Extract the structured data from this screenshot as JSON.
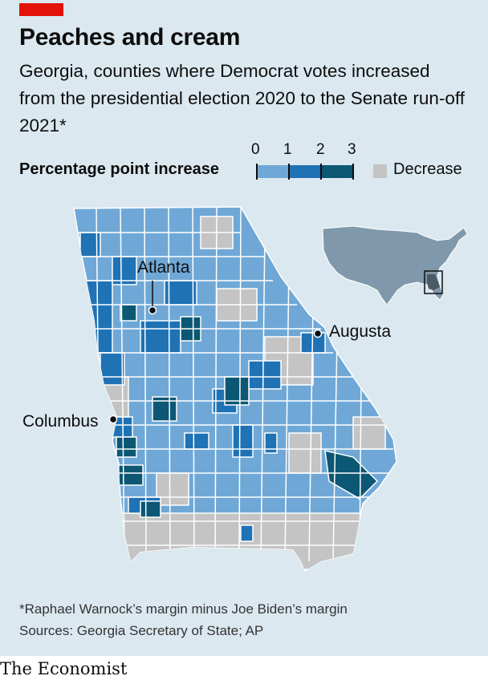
{
  "title": "Peaches and cream",
  "subtitle": "Georgia, counties where Democrat votes increased from the presidential election 2020 to the Senate run-off 2021*",
  "legend": {
    "title": "Percentage point increase",
    "ticks": [
      "0",
      "1",
      "2",
      "3"
    ],
    "bins": [
      {
        "range": "0-1",
        "color": "#6fa8d6"
      },
      {
        "range": "1-2",
        "color": "#1f72b4"
      },
      {
        "range": "2-3",
        "color": "#0b5774"
      }
    ],
    "decrease_label": "Decrease",
    "decrease_color": "#c4c4c4"
  },
  "map_labels": {
    "atlanta": "Atlanta",
    "augusta": "Augusta",
    "columbus": "Columbus"
  },
  "footnote": "*Raphael Warnock’s margin minus Joe Biden’s margin",
  "sources": "Sources: Georgia Secretary of State; AP",
  "brand": "The Economist",
  "colors": {
    "background": "#dbe8ef",
    "accent": "#e3120b",
    "inset_us": "#7f98ab",
    "inset_georgia": "#4a5b66"
  }
}
